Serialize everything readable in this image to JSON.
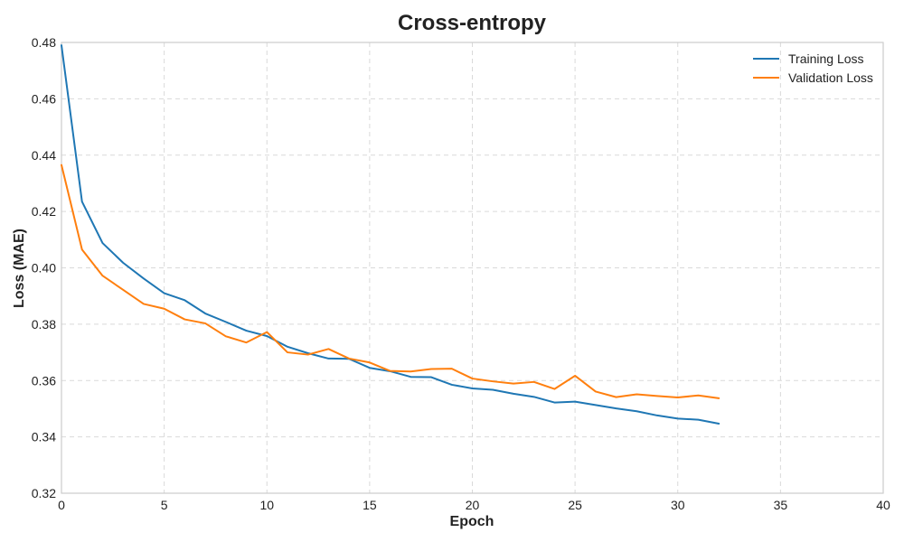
{
  "chart_data": {
    "type": "line",
    "title": "Cross-entropy",
    "xlabel": "Epoch",
    "ylabel": "Loss (MAE)",
    "xlim": [
      0,
      40
    ],
    "ylim": [
      0.32,
      0.48
    ],
    "xticks": [
      0,
      5,
      10,
      15,
      20,
      25,
      30,
      35,
      40
    ],
    "yticks": [
      0.32,
      0.34,
      0.36,
      0.38,
      0.4,
      0.42,
      0.44,
      0.46,
      0.48
    ],
    "xtick_labels": [
      "0",
      "5",
      "10",
      "15",
      "20",
      "25",
      "30",
      "35",
      "40"
    ],
    "ytick_labels": [
      "0.32",
      "0.34",
      "0.36",
      "0.38",
      "0.40",
      "0.42",
      "0.44",
      "0.46",
      "0.48"
    ],
    "grid": true,
    "legend_position": "top-right",
    "x": [
      0,
      1,
      2,
      3,
      4,
      5,
      6,
      7,
      8,
      9,
      10,
      11,
      12,
      13,
      14,
      15,
      16,
      17,
      18,
      19,
      20,
      21,
      22,
      23,
      24,
      25,
      26,
      27,
      28,
      29,
      30,
      31,
      32
    ],
    "series": [
      {
        "name": "Training Loss",
        "color": "#1f77b4",
        "values": [
          0.479,
          0.4235,
          0.4088,
          0.4018,
          0.3962,
          0.391,
          0.3885,
          0.3838,
          0.3808,
          0.3777,
          0.3758,
          0.372,
          0.3697,
          0.3678,
          0.3677,
          0.3645,
          0.3633,
          0.3613,
          0.3612,
          0.3585,
          0.3572,
          0.3567,
          0.3553,
          0.3542,
          0.3522,
          0.3525,
          0.3513,
          0.3501,
          0.3491,
          0.3476,
          0.3465,
          0.3461,
          0.3447
        ]
      },
      {
        "name": "Validation Loss",
        "color": "#ff7f0e",
        "values": [
          0.4365,
          0.4065,
          0.3972,
          0.3922,
          0.3872,
          0.3855,
          0.3817,
          0.3803,
          0.3757,
          0.3735,
          0.3772,
          0.37,
          0.3692,
          0.3712,
          0.3678,
          0.3664,
          0.3634,
          0.3632,
          0.3641,
          0.3642,
          0.3607,
          0.3597,
          0.3589,
          0.3595,
          0.357,
          0.3617,
          0.3561,
          0.3541,
          0.3551,
          0.3545,
          0.354,
          0.3547,
          0.3537
        ]
      }
    ]
  }
}
